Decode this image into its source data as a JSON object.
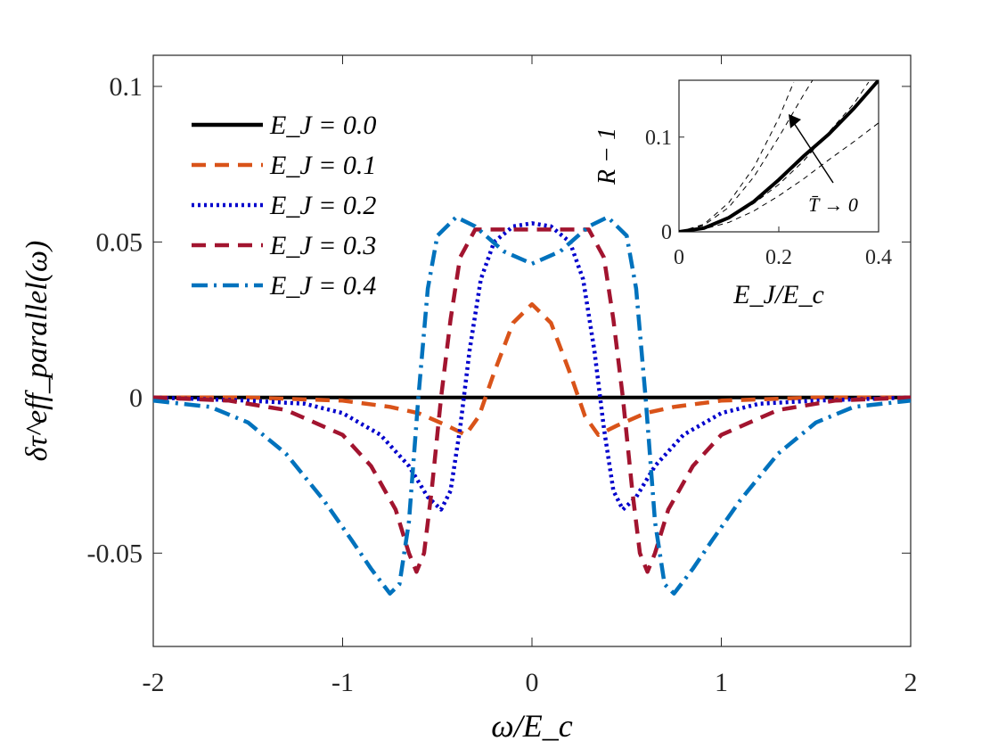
{
  "chart_data": [
    {
      "type": "line",
      "xlabel": "ω/E_c",
      "ylabel": "δτ^eff_parallel(ω)",
      "xlim": [
        -2,
        2
      ],
      "ylim": [
        -0.08,
        0.11
      ],
      "xticks": [
        "-2",
        "-1",
        "0",
        "1",
        "2"
      ],
      "xtick_values": [
        -2,
        -1,
        0,
        1,
        2
      ],
      "yticks": [
        "-0.05",
        "0",
        "0.05",
        "0.1"
      ],
      "ytick_values": [
        -0.05,
        0,
        0.05,
        0.1
      ],
      "legend_location": "top-left",
      "series": [
        {
          "name": "E_J = 0.0",
          "label": "E_J = 0.0",
          "color": "#000000",
          "style": "solid",
          "points": [
            [
              -2,
              0
            ],
            [
              -1,
              0
            ],
            [
              0,
              0
            ],
            [
              1,
              0
            ],
            [
              2,
              0
            ]
          ]
        },
        {
          "name": "E_J = 0.1",
          "label": "E_J = 0.1",
          "color": "#d95319",
          "style": "dashed",
          "points": [
            [
              -2,
              0
            ],
            [
              -1.5,
              0
            ],
            [
              -1,
              -0.001
            ],
            [
              -0.75,
              -0.003
            ],
            [
              -0.6,
              -0.005
            ],
            [
              -0.45,
              -0.009
            ],
            [
              -0.35,
              -0.012
            ],
            [
              -0.28,
              -0.006
            ],
            [
              -0.2,
              0.008
            ],
            [
              -0.1,
              0.024
            ],
            [
              0,
              0.03
            ],
            [
              0.1,
              0.024
            ],
            [
              0.2,
              0.008
            ],
            [
              0.28,
              -0.006
            ],
            [
              0.35,
              -0.012
            ],
            [
              0.45,
              -0.009
            ],
            [
              0.6,
              -0.005
            ],
            [
              0.75,
              -0.003
            ],
            [
              1,
              -0.001
            ],
            [
              1.5,
              0
            ],
            [
              2,
              0
            ]
          ]
        },
        {
          "name": "E_J = 0.2",
          "label": "E_J = 0.2",
          "color": "#0000cc",
          "style": "dotted",
          "points": [
            [
              -2,
              0
            ],
            [
              -1.5,
              -0.001
            ],
            [
              -1.2,
              -0.002
            ],
            [
              -1,
              -0.005
            ],
            [
              -0.8,
              -0.012
            ],
            [
              -0.65,
              -0.022
            ],
            [
              -0.55,
              -0.032
            ],
            [
              -0.48,
              -0.036
            ],
            [
              -0.43,
              -0.03
            ],
            [
              -0.38,
              -0.01
            ],
            [
              -0.33,
              0.015
            ],
            [
              -0.27,
              0.038
            ],
            [
              -0.2,
              0.05
            ],
            [
              -0.1,
              0.055
            ],
            [
              0,
              0.056
            ],
            [
              0.1,
              0.055
            ],
            [
              0.2,
              0.05
            ],
            [
              0.27,
              0.038
            ],
            [
              0.33,
              0.015
            ],
            [
              0.38,
              -0.01
            ],
            [
              0.43,
              -0.03
            ],
            [
              0.48,
              -0.036
            ],
            [
              0.55,
              -0.032
            ],
            [
              0.65,
              -0.022
            ],
            [
              0.8,
              -0.012
            ],
            [
              1,
              -0.005
            ],
            [
              1.2,
              -0.002
            ],
            [
              1.5,
              -0.001
            ],
            [
              2,
              0
            ]
          ]
        },
        {
          "name": "E_J = 0.3",
          "label": "E_J = 0.3",
          "color": "#a2142f",
          "style": "dashed",
          "points": [
            [
              -2,
              0
            ],
            [
              -1.6,
              -0.001
            ],
            [
              -1.3,
              -0.004
            ],
            [
              -1,
              -0.012
            ],
            [
              -0.85,
              -0.022
            ],
            [
              -0.72,
              -0.036
            ],
            [
              -0.65,
              -0.05
            ],
            [
              -0.61,
              -0.056
            ],
            [
              -0.57,
              -0.05
            ],
            [
              -0.53,
              -0.03
            ],
            [
              -0.48,
              0.0
            ],
            [
              -0.43,
              0.025
            ],
            [
              -0.38,
              0.045
            ],
            [
              -0.3,
              0.054
            ],
            [
              -0.15,
              0.054
            ],
            [
              0,
              0.054
            ],
            [
              0.15,
              0.054
            ],
            [
              0.3,
              0.054
            ],
            [
              0.38,
              0.045
            ],
            [
              0.43,
              0.025
            ],
            [
              0.48,
              0.0
            ],
            [
              0.53,
              -0.03
            ],
            [
              0.57,
              -0.05
            ],
            [
              0.61,
              -0.056
            ],
            [
              0.65,
              -0.05
            ],
            [
              0.72,
              -0.036
            ],
            [
              0.85,
              -0.022
            ],
            [
              1,
              -0.012
            ],
            [
              1.3,
              -0.004
            ],
            [
              1.6,
              -0.001
            ],
            [
              2,
              0
            ]
          ]
        },
        {
          "name": "E_J = 0.4",
          "label": "E_J = 0.4",
          "color": "#0072bd",
          "style": "dashdot",
          "points": [
            [
              -2,
              -0.001
            ],
            [
              -1.7,
              -0.003
            ],
            [
              -1.5,
              -0.008
            ],
            [
              -1.3,
              -0.018
            ],
            [
              -1.1,
              -0.033
            ],
            [
              -0.95,
              -0.046
            ],
            [
              -0.85,
              -0.055
            ],
            [
              -0.75,
              -0.063
            ],
            [
              -0.7,
              -0.06
            ],
            [
              -0.65,
              -0.04
            ],
            [
              -0.6,
              0.0
            ],
            [
              -0.55,
              0.035
            ],
            [
              -0.5,
              0.052
            ],
            [
              -0.4,
              0.058
            ],
            [
              -0.3,
              0.055
            ],
            [
              -0.15,
              0.047
            ],
            [
              0,
              0.043
            ],
            [
              0.15,
              0.047
            ],
            [
              0.3,
              0.055
            ],
            [
              0.4,
              0.058
            ],
            [
              0.5,
              0.052
            ],
            [
              0.55,
              0.035
            ],
            [
              0.6,
              0.0
            ],
            [
              0.65,
              -0.04
            ],
            [
              0.7,
              -0.06
            ],
            [
              0.75,
              -0.063
            ],
            [
              0.85,
              -0.055
            ],
            [
              0.95,
              -0.046
            ],
            [
              1.1,
              -0.033
            ],
            [
              1.3,
              -0.018
            ],
            [
              1.5,
              -0.008
            ],
            [
              1.7,
              -0.003
            ],
            [
              2,
              -0.001
            ]
          ]
        }
      ]
    },
    {
      "type": "line",
      "xlabel": "E_J/E_c",
      "ylabel": "R − 1",
      "xlim": [
        0,
        0.4
      ],
      "ylim": [
        0,
        0.16
      ],
      "xticks": [
        "0",
        "0.2",
        "0.4"
      ],
      "xtick_values": [
        0,
        0.2,
        0.4
      ],
      "yticks": [
        "0",
        "0.1"
      ],
      "ytick_values": [
        0,
        0.1
      ],
      "annotation": "T̄ → 0",
      "series": [
        {
          "name": "thick",
          "color": "#000000",
          "style": "solid",
          "points": [
            [
              0,
              0
            ],
            [
              0.05,
              0.004
            ],
            [
              0.1,
              0.015
            ],
            [
              0.15,
              0.032
            ],
            [
              0.2,
              0.055
            ],
            [
              0.25,
              0.08
            ],
            [
              0.3,
              0.103
            ],
            [
              0.35,
              0.13
            ],
            [
              0.4,
              0.16
            ]
          ]
        },
        {
          "name": "dashed-a",
          "color": "#000000",
          "style": "dashed",
          "points": [
            [
              0,
              0
            ],
            [
              0.05,
              0.008
            ],
            [
              0.1,
              0.031
            ],
            [
              0.15,
              0.068
            ],
            [
              0.2,
              0.12
            ],
            [
              0.23,
              0.158
            ]
          ]
        },
        {
          "name": "dashed-b",
          "color": "#000000",
          "style": "dashed",
          "points": [
            [
              0,
              0
            ],
            [
              0.05,
              0.007
            ],
            [
              0.1,
              0.026
            ],
            [
              0.15,
              0.058
            ],
            [
              0.2,
              0.1
            ],
            [
              0.25,
              0.145
            ],
            [
              0.27,
              0.162
            ]
          ]
        },
        {
          "name": "dashed-c",
          "color": "#000000",
          "style": "dashed",
          "points": [
            [
              0,
              0
            ],
            [
              0.05,
              0.004
            ],
            [
              0.1,
              0.014
            ],
            [
              0.15,
              0.03
            ],
            [
              0.2,
              0.05
            ],
            [
              0.25,
              0.075
            ],
            [
              0.3,
              0.105
            ],
            [
              0.35,
              0.135
            ],
            [
              0.38,
              0.158
            ]
          ]
        },
        {
          "name": "dashed-d",
          "color": "#000000",
          "style": "dashed",
          "points": [
            [
              0,
              0
            ],
            [
              0.05,
              0.003
            ],
            [
              0.1,
              0.01
            ],
            [
              0.15,
              0.022
            ],
            [
              0.2,
              0.038
            ],
            [
              0.25,
              0.056
            ],
            [
              0.3,
              0.076
            ],
            [
              0.35,
              0.095
            ],
            [
              0.4,
              0.115
            ]
          ]
        }
      ]
    }
  ]
}
